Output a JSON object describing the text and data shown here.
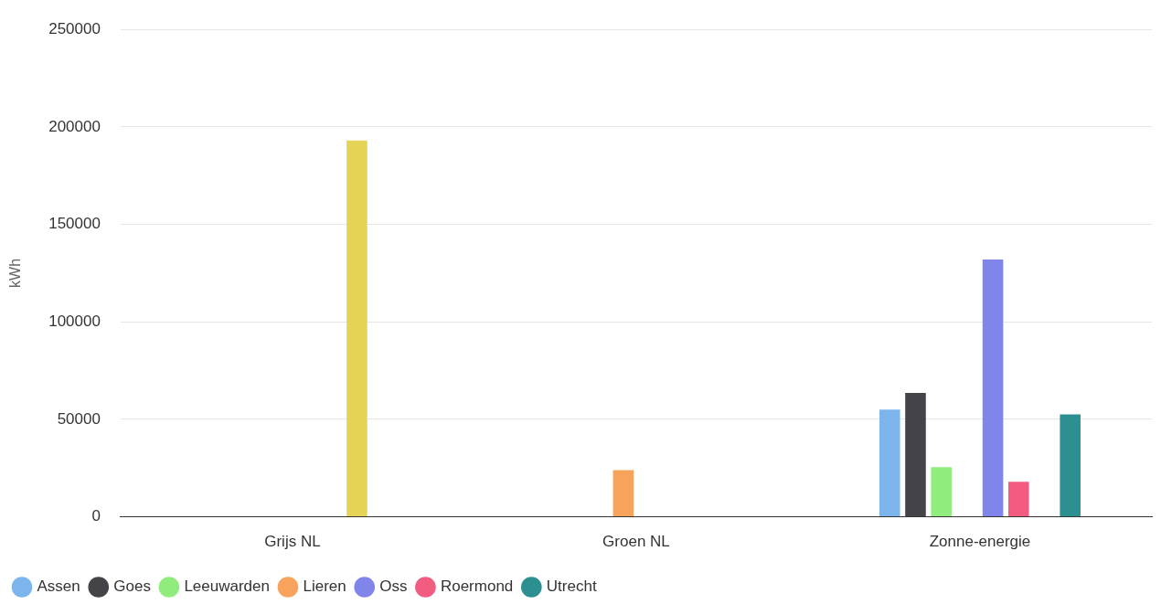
{
  "chart_data": {
    "type": "bar",
    "ylabel": "kWh",
    "categories": [
      "Grijs NL",
      "Groen NL",
      "Zonne-energie"
    ],
    "series": [
      {
        "name": "Assen",
        "color": "#7cb5ec",
        "values": [
          null,
          null,
          55000
        ]
      },
      {
        "name": "Goes",
        "color": "#434348",
        "values": [
          null,
          null,
          63500
        ]
      },
      {
        "name": "Leeuwarden",
        "color": "#90ed7d",
        "values": [
          null,
          null,
          25500
        ]
      },
      {
        "name": "Lieren",
        "color": "#f7a35c",
        "values": [
          null,
          24000,
          null
        ]
      },
      {
        "name": "Oss",
        "color": "#8085e9",
        "values": [
          null,
          null,
          132000
        ]
      },
      {
        "name": "Roermond",
        "color": "#f15c80",
        "values": [
          null,
          null,
          18000
        ]
      },
      {
        "color": "#e4d354",
        "values": [
          193000,
          null,
          null
        ]
      },
      {
        "name": "Utrecht",
        "color": "#2b908f",
        "values": [
          null,
          null,
          52500
        ]
      }
    ],
    "ylim": [
      0,
      250000
    ],
    "yticks": [
      0,
      50000,
      100000,
      150000,
      200000,
      250000
    ],
    "grid": "y",
    "legend": "bottom"
  }
}
